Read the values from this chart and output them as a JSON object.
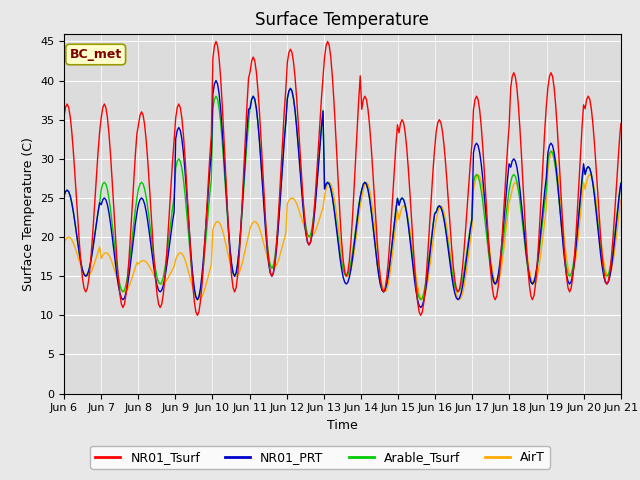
{
  "title": "Surface Temperature",
  "ylabel": "Surface Temperature (C)",
  "xlabel": "Time",
  "annotation": "BC_met",
  "ylim": [
    0,
    46
  ],
  "yticks": [
    0,
    5,
    10,
    15,
    20,
    25,
    30,
    35,
    40,
    45
  ],
  "legend_labels": [
    "NR01_Tsurf",
    "NR01_PRT",
    "Arable_Tsurf",
    "AirT"
  ],
  "line_colors": [
    "#ff0000",
    "#0000cc",
    "#00cc00",
    "#ffaa00"
  ],
  "fig_bg_color": "#e8e8e8",
  "plot_bg_color": "#dcdcdc",
  "title_fontsize": 12,
  "label_fontsize": 9,
  "tick_fontsize": 8,
  "xticklabels": [
    "Jun 6",
    "Jun 7",
    "Jun 8",
    "Jun 9",
    "Jun 10",
    "Jun 11",
    "Jun 12",
    "Jun 13",
    "Jun 14",
    "Jun 15",
    "Jun 16",
    "Jun 17",
    "Jun 18",
    "Jun 19",
    "Jun 20",
    "Jun 21"
  ],
  "n_days": 15,
  "NR01_Tsurf_day_peaks": [
    37,
    37,
    36,
    37,
    45,
    43,
    44,
    45,
    38,
    35,
    35,
    38,
    41,
    41,
    38,
    38
  ],
  "NR01_Tsurf_night_min": [
    13,
    11,
    11,
    10,
    13,
    15,
    19,
    15,
    13,
    10,
    13,
    12,
    12,
    13,
    14,
    14
  ],
  "NR01_PRT_day_peaks": [
    26,
    25,
    25,
    34,
    40,
    38,
    39,
    27,
    27,
    25,
    24,
    32,
    30,
    32,
    29,
    29
  ],
  "NR01_PRT_night_min": [
    15,
    12,
    13,
    12,
    15,
    15,
    19,
    14,
    13,
    11,
    12,
    14,
    14,
    14,
    14,
    14
  ],
  "Arable_Tsurf_day_peaks": [
    26,
    27,
    27,
    30,
    38,
    38,
    39,
    27,
    27,
    25,
    24,
    28,
    28,
    31,
    29,
    29
  ],
  "Arable_Tsurf_night_min": [
    15,
    13,
    14,
    12,
    15,
    16,
    20,
    15,
    13,
    12,
    13,
    14,
    14,
    15,
    15,
    15
  ],
  "AirT_day_peaks": [
    20,
    18,
    17,
    18,
    22,
    22,
    25,
    27,
    27,
    24,
    24,
    28,
    27,
    31,
    28,
    28
  ],
  "AirT_night_min": [
    15,
    13,
    14,
    12,
    15,
    16,
    20,
    15,
    13,
    12,
    12,
    14,
    14,
    15,
    15,
    15
  ]
}
